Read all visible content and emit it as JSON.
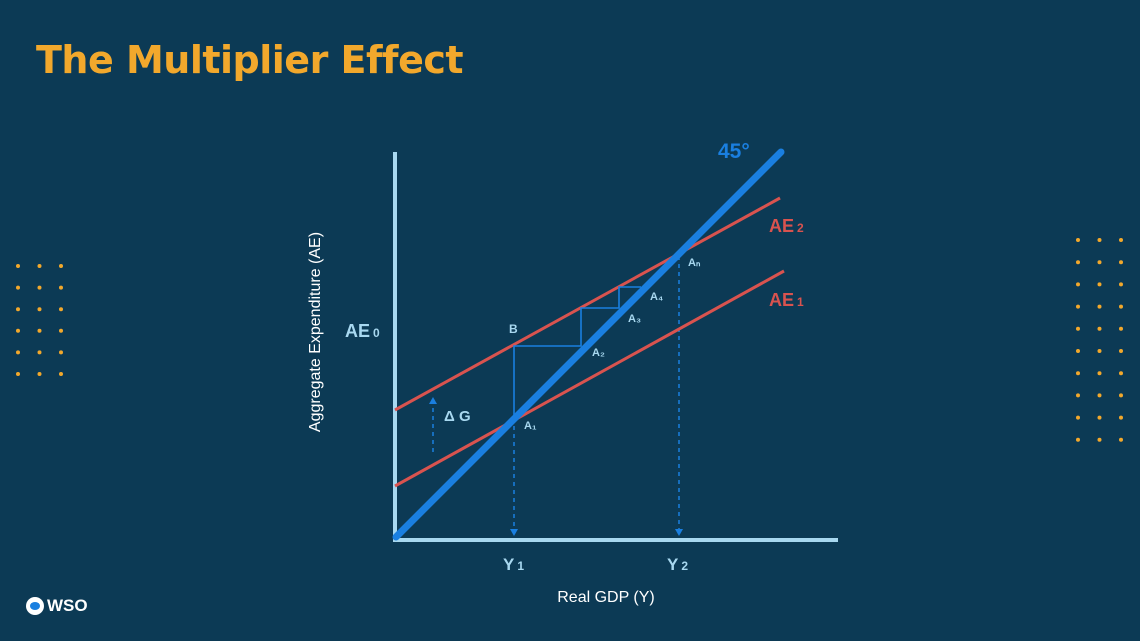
{
  "title": "The Multiplier Effect",
  "logo": {
    "text": "WSO",
    "icon": "wso-globe-icon"
  },
  "diagram": {
    "y_axis_label": "Aggregate Expenditure (AE)",
    "x_axis_label": "Real GDP (Y)",
    "line_45_label": "45°",
    "ae2_label_main": "AE",
    "ae2_label_sub": "2",
    "ae1_label_main": "AE",
    "ae1_label_sub": "1",
    "ae0_label_main": "AE",
    "ae0_label_sub": "0",
    "delta_g_label": "Δ G",
    "point_b": "B",
    "point_a1": "A₁",
    "point_a2": "A₂",
    "point_a3": "A₃",
    "point_a4": "A₄",
    "point_an": "Aₙ",
    "y1_main": "Y",
    "y1_sub": "1",
    "y2_main": "Y",
    "y2_sub": "2"
  },
  "colors": {
    "background": "#0c3a55",
    "title": "#f2a82c",
    "line_45": "#1a7fe0",
    "ae_lines": "#d9534f",
    "axes": "#a8d8f0",
    "dots": "#f2a82c"
  }
}
